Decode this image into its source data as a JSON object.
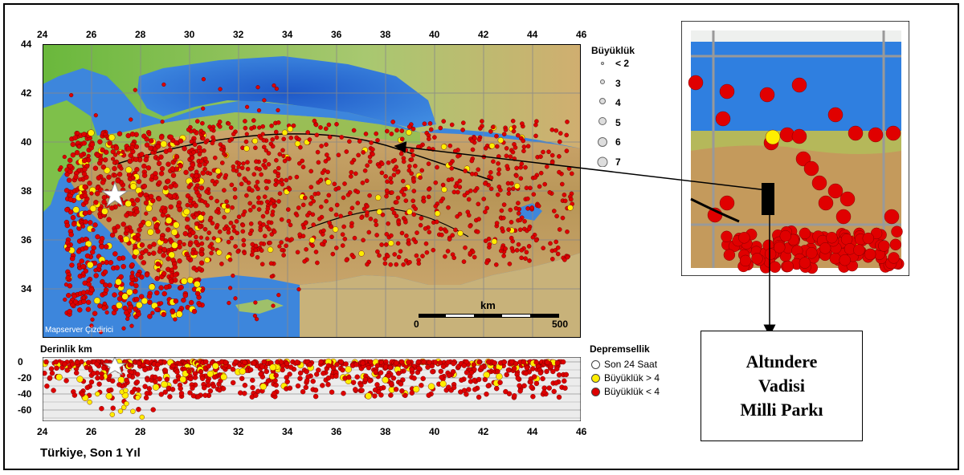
{
  "map": {
    "lon_ticks": [
      "24",
      "26",
      "28",
      "30",
      "32",
      "34",
      "36",
      "38",
      "40",
      "42",
      "44",
      "46"
    ],
    "lat_ticks": [
      "44",
      "42",
      "40",
      "38",
      "36",
      "34"
    ],
    "credit": "Mapserver Çizdirici",
    "scale": {
      "unit": "km",
      "start": "0",
      "end": "500"
    },
    "epicenter_marker": "star-icon"
  },
  "magnitude_legend": {
    "title": "Büyüklük",
    "items": [
      "< 2",
      "3",
      "4",
      "5",
      "6",
      "7"
    ]
  },
  "depth_panel": {
    "title": "Derinlik km",
    "y_ticks": [
      "0",
      "-20",
      "-40",
      "-60"
    ],
    "x_ticks": [
      "24",
      "26",
      "28",
      "30",
      "32",
      "34",
      "36",
      "38",
      "40",
      "42",
      "44",
      "46"
    ]
  },
  "seismicity_legend": {
    "title": "Depremsellik",
    "items": [
      {
        "label": "Son 24 Saat",
        "color": "#ffffff"
      },
      {
        "label": "Büyüklük > 4",
        "color": "#ffee00"
      },
      {
        "label": "Büyüklük < 4",
        "color": "#dd0000"
      }
    ]
  },
  "footer_caption": "Türkiye, Son 1 Yıl",
  "park_label": {
    "line1": "Altındere",
    "line2": "Vadisi",
    "line3": "Milli Parkı"
  },
  "colors": {
    "sea": "#2a6fd6",
    "land_low": "#6fbf3a",
    "land_high": "#c8a066",
    "event_small": "#dd0000",
    "event_large": "#ffee00"
  }
}
